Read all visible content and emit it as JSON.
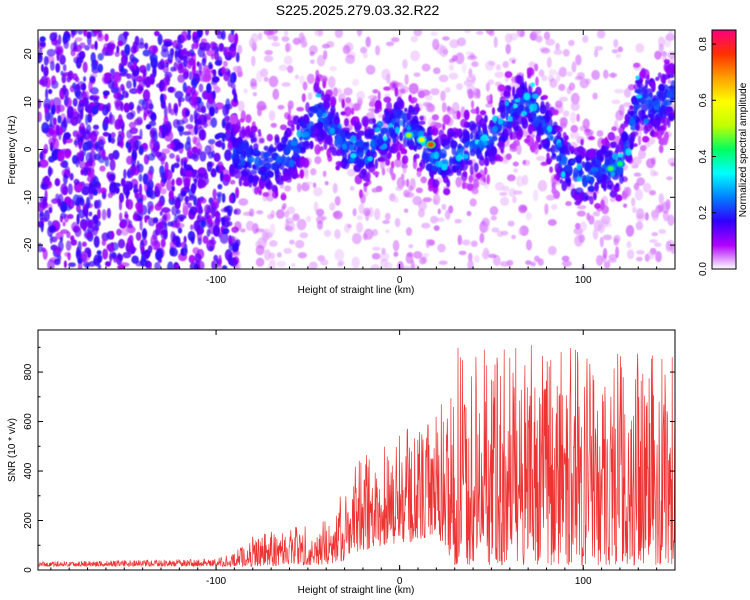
{
  "title": "S225.2025.279.03.32.R22",
  "chart_data": [
    {
      "type": "heatmap",
      "xlabel": "Height of straight line (km)",
      "ylabel": "Frequency (Hz)",
      "xlim": [
        -197,
        150
      ],
      "ylim": [
        -25,
        25
      ],
      "xticks": [
        -100,
        0,
        100
      ],
      "xtick_labels": [
        "-100",
        "0",
        "100"
      ],
      "yticks": [
        -20,
        -10,
        0,
        10,
        20
      ],
      "ytick_labels": [
        "-20",
        "-10",
        "0",
        "10",
        "20"
      ],
      "ridge": {
        "x": [
          -90,
          -80,
          -70,
          -60,
          -50,
          -45,
          -40,
          -30,
          -20,
          -10,
          0,
          10,
          20,
          30,
          40,
          50,
          60,
          70,
          80,
          90,
          100,
          110,
          120,
          130,
          140,
          150
        ],
        "freq": [
          -1,
          -2,
          -3,
          -1,
          4,
          8,
          6,
          1,
          -1,
          3,
          6,
          3,
          -3,
          -1,
          1,
          2,
          8,
          10,
          4,
          -3,
          -6,
          -4,
          -4,
          10,
          9,
          12
        ]
      },
      "hotspots": [
        {
          "x": 5,
          "freq": 3,
          "amp": 0.5
        },
        {
          "x": 12,
          "freq": 2,
          "amp": 0.6
        },
        {
          "x": 17,
          "freq": 1,
          "amp": 0.75
        },
        {
          "x": 115,
          "freq": -4,
          "amp": 0.45
        },
        {
          "x": 120,
          "freq": -3,
          "amp": 0.42
        }
      ],
      "colorbar": {
        "label": "Normalized spectral amplitude",
        "min": 0.0,
        "max": 0.85,
        "ticks": [
          0.0,
          0.2,
          0.4,
          0.6,
          0.8
        ],
        "tick_labels": [
          "0.0",
          "0.2",
          "0.4",
          "0.6",
          "0.8"
        ],
        "colors": [
          "#ffffff",
          "#b000ff",
          "#3000ff",
          "#0080ff",
          "#00ffff",
          "#00ff60",
          "#c0ff00",
          "#ffff00",
          "#ffa000",
          "#ff3000",
          "#ff0080"
        ]
      }
    },
    {
      "type": "line",
      "xlabel": "Height of straight line (km)",
      "ylabel": "SNR (10 * v/v)",
      "xlim": [
        -197,
        150
      ],
      "ylim": [
        0,
        970
      ],
      "xticks": [
        -100,
        0,
        100
      ],
      "xtick_labels": [
        "-100",
        "0",
        "100"
      ],
      "yticks": [
        0,
        200,
        400,
        600,
        800
      ],
      "ytick_labels": [
        "0",
        "200",
        "400",
        "600",
        "800"
      ],
      "color": "#ee3333",
      "envelope": {
        "x": [
          -197,
          -100,
          -90,
          -80,
          -60,
          -40,
          -30,
          -20,
          -10,
          0,
          10,
          20,
          25,
          30,
          60,
          90,
          120,
          150
        ],
        "min": [
          15,
          15,
          15,
          15,
          20,
          20,
          40,
          80,
          90,
          110,
          110,
          150,
          50,
          20,
          20,
          20,
          20,
          20
        ],
        "max": [
          35,
          45,
          70,
          140,
          180,
          200,
          330,
          480,
          520,
          560,
          590,
          620,
          800,
          900,
          920,
          900,
          900,
          880
        ]
      }
    }
  ]
}
